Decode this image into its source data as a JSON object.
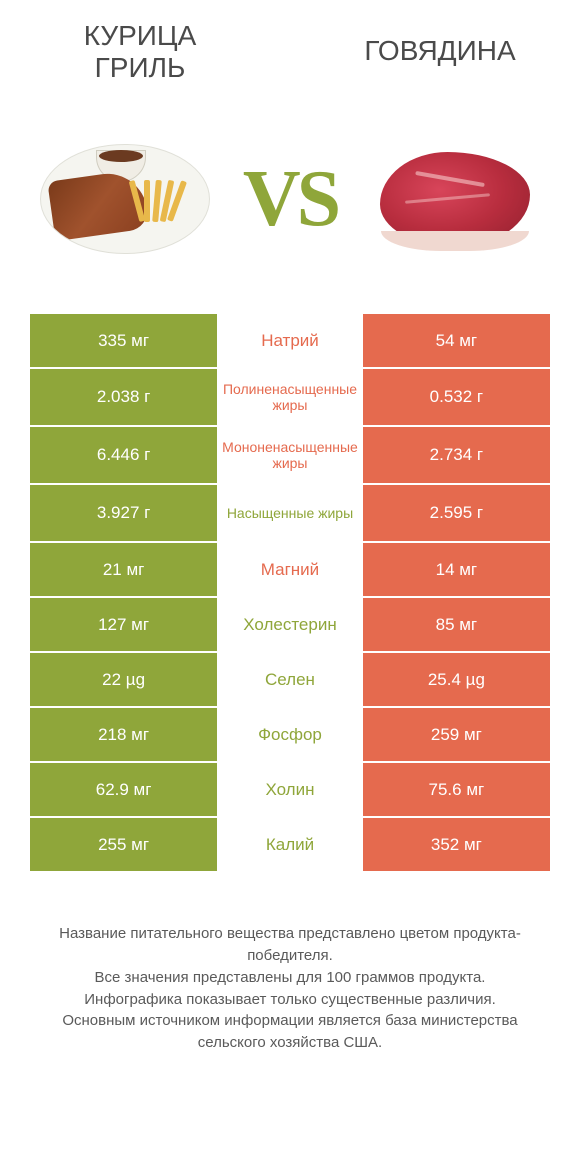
{
  "header": {
    "left_title": "КУРИЦА ГРИЛЬ",
    "right_title": "ГОВЯДИНА",
    "vs_label": "VS"
  },
  "colors": {
    "green": "#8fa63a",
    "orange": "#e56a4e",
    "text_gray": "#4a4a4a"
  },
  "rows": [
    {
      "left": "335 мг",
      "mid": "Натрий",
      "right": "54 мг",
      "winner": "left",
      "tall": false
    },
    {
      "left": "2.038 г",
      "mid": "Полиненасыщенные жиры",
      "right": "0.532 г",
      "winner": "left",
      "tall": true
    },
    {
      "left": "6.446 г",
      "mid": "Мононенасыщенные жиры",
      "right": "2.734 г",
      "winner": "left",
      "tall": true
    },
    {
      "left": "3.927 г",
      "mid": "Насыщенные жиры",
      "right": "2.595 г",
      "winner": "right",
      "tall": true
    },
    {
      "left": "21 мг",
      "mid": "Магний",
      "right": "14 мг",
      "winner": "left",
      "tall": false
    },
    {
      "left": "127 мг",
      "mid": "Холестерин",
      "right": "85 мг",
      "winner": "right",
      "tall": false
    },
    {
      "left": "22 µg",
      "mid": "Селен",
      "right": "25.4 µg",
      "winner": "right",
      "tall": false
    },
    {
      "left": "218 мг",
      "mid": "Фосфор",
      "right": "259 мг",
      "winner": "right",
      "tall": false
    },
    {
      "left": "62.9 мг",
      "mid": "Холин",
      "right": "75.6 мг",
      "winner": "right",
      "tall": false
    },
    {
      "left": "255 мг",
      "mid": "Калий",
      "right": "352 мг",
      "winner": "right",
      "tall": false
    }
  ],
  "footer": {
    "line1": "Название питательного вещества представлено цветом продукта-победителя.",
    "line2": "Все значения представлены для 100 граммов продукта.",
    "line3": "Инфографика показывает только существенные различия.",
    "line4": "Основным источником информации является база министерства сельского хозяйства США."
  }
}
